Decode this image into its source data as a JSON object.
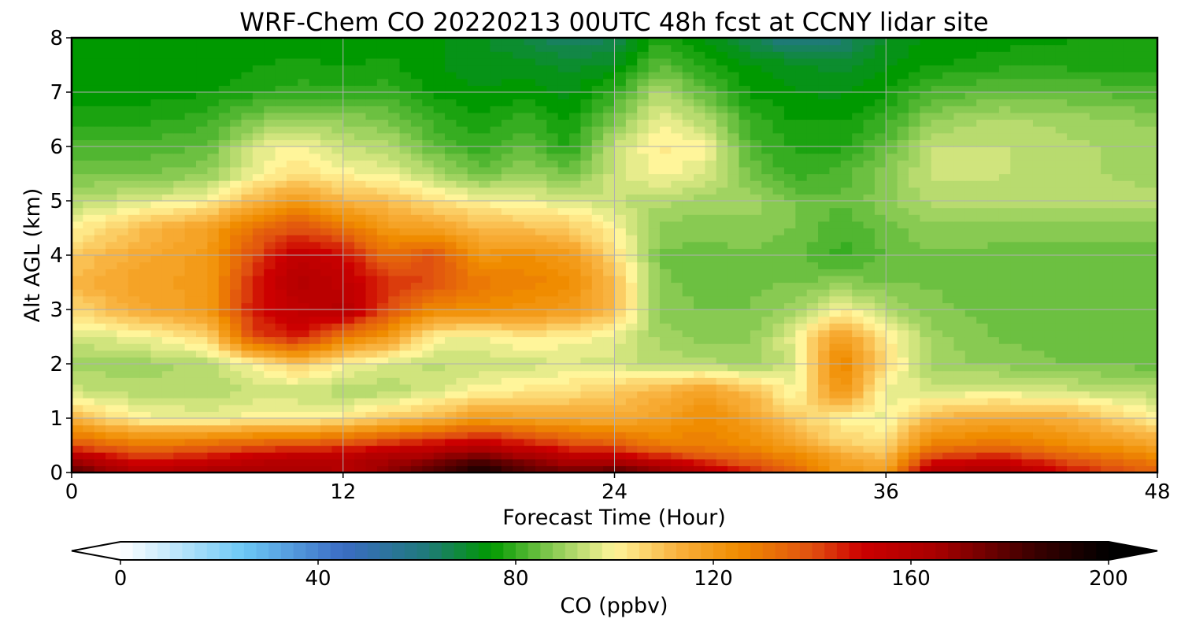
{
  "chart_data": {
    "type": "heatmap",
    "subtype": "filled-contour time-height section",
    "title": "WRF-Chem CO  20220213 00UTC 48h fcst at CCNY lidar site",
    "xlabel": "Forecast Time (Hour)",
    "ylabel": "Alt AGL (km)",
    "xlim": [
      0,
      48
    ],
    "ylim": [
      0,
      8
    ],
    "x_ticks": [
      "0",
      "12",
      "24",
      "36",
      "48"
    ],
    "y_ticks": [
      "0",
      "1",
      "2",
      "3",
      "4",
      "5",
      "6",
      "7",
      "8"
    ],
    "grid": true,
    "colorbar": {
      "label": "CO  (ppbv)",
      "range": [
        0,
        200
      ],
      "ticks": [
        "0",
        "40",
        "80",
        "120",
        "160",
        "200"
      ],
      "extend": "both",
      "orientation": "horizontal",
      "placement": "bottom",
      "color_stops": [
        {
          "value": 0,
          "color": "#ffffff"
        },
        {
          "value": 25,
          "color": "#6cc8f5"
        },
        {
          "value": 45,
          "color": "#3b6cc4"
        },
        {
          "value": 62,
          "color": "#1f7a7a"
        },
        {
          "value": 75,
          "color": "#009900"
        },
        {
          "value": 88,
          "color": "#8dcc55"
        },
        {
          "value": 100,
          "color": "#fff59a"
        },
        {
          "value": 113,
          "color": "#f8b03c"
        },
        {
          "value": 125,
          "color": "#f08c00"
        },
        {
          "value": 140,
          "color": "#e05010"
        },
        {
          "value": 150,
          "color": "#cc0000"
        },
        {
          "value": 165,
          "color": "#a80000"
        },
        {
          "value": 185,
          "color": "#3a0000"
        },
        {
          "value": 200,
          "color": "#000000"
        }
      ],
      "under_color": "#ffffff",
      "over_color": "#000000"
    },
    "time_hours": [
      0,
      3,
      6,
      8,
      10,
      12,
      14,
      16,
      18,
      20,
      22,
      24,
      26,
      28,
      30,
      32,
      34,
      36,
      38,
      41,
      44,
      48
    ],
    "altitudes_km": [
      0,
      0.25,
      0.5,
      1,
      1.5,
      2,
      2.5,
      3,
      3.5,
      4,
      4.5,
      5,
      5.5,
      6,
      6.5,
      7,
      7.5,
      8
    ],
    "values_ppbv": [
      [
        180,
        160,
        165,
        165,
        165,
        160,
        170,
        180,
        195,
        182,
        175,
        180,
        170,
        160,
        145,
        135,
        120,
        120,
        160,
        165,
        150,
        135
      ],
      [
        165,
        145,
        150,
        155,
        160,
        160,
        165,
        170,
        180,
        170,
        160,
        160,
        150,
        140,
        135,
        128,
        118,
        112,
        145,
        150,
        138,
        128
      ],
      [
        140,
        130,
        135,
        138,
        140,
        142,
        148,
        152,
        158,
        150,
        142,
        138,
        130,
        128,
        125,
        118,
        108,
        105,
        128,
        132,
        125,
        118
      ],
      [
        112,
        100,
        98,
        100,
        100,
        102,
        108,
        112,
        120,
        118,
        116,
        115,
        118,
        125,
        118,
        108,
        100,
        98,
        112,
        116,
        114,
        100
      ],
      [
        95,
        92,
        92,
        94,
        94,
        92,
        92,
        96,
        100,
        102,
        104,
        108,
        112,
        118,
        110,
        98,
        122,
        98,
        96,
        97,
        95,
        92
      ],
      [
        90,
        90,
        92,
        100,
        108,
        100,
        95,
        93,
        94,
        95,
        96,
        95,
        93,
        92,
        90,
        95,
        128,
        105,
        90,
        88,
        86,
        85
      ],
      [
        95,
        98,
        105,
        140,
        148,
        130,
        120,
        100,
        98,
        102,
        100,
        98,
        90,
        88,
        88,
        98,
        120,
        102,
        90,
        86,
        85,
        84
      ],
      [
        105,
        115,
        120,
        148,
        155,
        160,
        140,
        125,
        125,
        122,
        120,
        110,
        88,
        86,
        86,
        90,
        100,
        92,
        87,
        85,
        85,
        84
      ],
      [
        112,
        118,
        120,
        145,
        160,
        155,
        145,
        140,
        130,
        128,
        125,
        110,
        87,
        85,
        86,
        86,
        88,
        86,
        86,
        85,
        85,
        84
      ],
      [
        108,
        115,
        120,
        140,
        155,
        150,
        132,
        140,
        122,
        124,
        120,
        105,
        86,
        85,
        86,
        84,
        80,
        84,
        86,
        85,
        85,
        84
      ],
      [
        100,
        110,
        118,
        132,
        140,
        132,
        120,
        118,
        112,
        110,
        108,
        100,
        88,
        87,
        88,
        86,
        82,
        85,
        88,
        88,
        88,
        88
      ],
      [
        92,
        96,
        100,
        112,
        120,
        112,
        110,
        104,
        100,
        98,
        96,
        94,
        92,
        90,
        90,
        86,
        84,
        88,
        92,
        93,
        93,
        92
      ],
      [
        86,
        86,
        88,
        98,
        104,
        100,
        98,
        92,
        85,
        90,
        86,
        95,
        100,
        96,
        86,
        80,
        82,
        88,
        94,
        94,
        92,
        90
      ],
      [
        82,
        82,
        84,
        96,
        100,
        94,
        92,
        84,
        80,
        84,
        78,
        94,
        102,
        100,
        82,
        78,
        78,
        84,
        94,
        94,
        92,
        90
      ],
      [
        78,
        78,
        80,
        86,
        90,
        88,
        86,
        80,
        77,
        80,
        76,
        86,
        98,
        92,
        80,
        76,
        76,
        80,
        88,
        92,
        90,
        88
      ],
      [
        75,
        75,
        76,
        78,
        80,
        80,
        80,
        76,
        74,
        75,
        73,
        80,
        92,
        84,
        76,
        74,
        73,
        76,
        82,
        84,
        84,
        82
      ],
      [
        74,
        74,
        75,
        76,
        77,
        76,
        77,
        74,
        72,
        73,
        70,
        72,
        84,
        78,
        74,
        72,
        70,
        73,
        76,
        78,
        78,
        78
      ],
      [
        74,
        74,
        74,
        75,
        75,
        75,
        75,
        74,
        72,
        68,
        64,
        66,
        78,
        74,
        66,
        60,
        62,
        72,
        74,
        75,
        76,
        76
      ]
    ]
  }
}
